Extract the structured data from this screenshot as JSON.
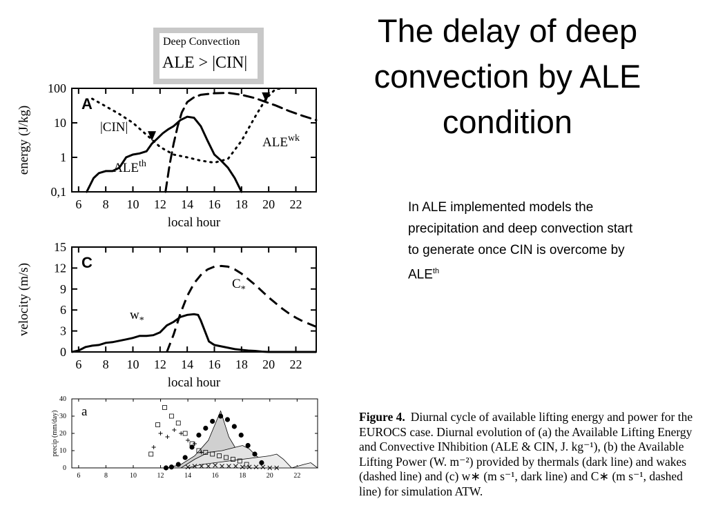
{
  "slide": {
    "title_lines": [
      "The delay of deep",
      "convection by ALE",
      "condition"
    ],
    "note_text": "In ALE implemented models the precipitation and deep convection start to generate once CIN is overcome by ALE",
    "note_sup": "th",
    "deep_convection_box": {
      "line1": "Deep Convection",
      "line2": "ALE > |CIN|"
    },
    "caption": {
      "label": "Figure 4.",
      "text": "Diurnal cycle of available lifting energy and power for the EUROCS case. Diurnal evolution of (a) the Available Lifting Energy and Convective INhibition (ALE & CIN, J. kg⁻¹), (b) the Available Lifting Power (W. m⁻²) provided by thermals (dark line) and wakes (dashed line) and (c) w∗ (m s⁻¹, dark line) and C∗ (m s⁻¹, dashed line) for simulation ATW."
    }
  },
  "chart_data": [
    {
      "type": "line",
      "panel": "A",
      "xlabel": "local hour",
      "ylabel": "energy (J/kg)",
      "xlim": [
        5.5,
        23.5
      ],
      "ylim": [
        0.1,
        100
      ],
      "yscale": "log",
      "x_ticks": [
        6,
        8,
        10,
        12,
        14,
        16,
        18,
        20,
        22
      ],
      "y_ticks": [
        0.1,
        1,
        10,
        100
      ],
      "y_tick_labels": [
        "0,1",
        "1",
        "10",
        "100"
      ],
      "series": [
        {
          "name": "ALE",
          "name_sup": "th",
          "style": "solid",
          "x": [
            6.6,
            7.1,
            7.5,
            8.0,
            8.5,
            9.0,
            9.5,
            10.0,
            10.5,
            11.0,
            11.4,
            11.8,
            12.2,
            12.6,
            13.0,
            13.5,
            14.0,
            14.5,
            15.0,
            15.5,
            16.0,
            16.5,
            17.0,
            17.5,
            18.0
          ],
          "y": [
            0.1,
            0.25,
            0.35,
            0.4,
            0.4,
            0.5,
            1.0,
            1.2,
            1.3,
            1.5,
            2.5,
            3.5,
            5.0,
            6.5,
            8.0,
            12.0,
            15.0,
            14.0,
            8.0,
            3.0,
            1.2,
            0.8,
            0.5,
            0.25,
            0.1
          ]
        },
        {
          "name": "|CIN|",
          "style": "dotted",
          "x": [
            7.0,
            8.0,
            9.0,
            10.0,
            11.0,
            11.5,
            12.0,
            13.0,
            14.0,
            15.0,
            16.0,
            17.0,
            18.0,
            19.0,
            19.8,
            20.5,
            21.0
          ],
          "y": [
            50.0,
            30.0,
            18.0,
            10.0,
            4.5,
            3.0,
            2.0,
            1.2,
            1.0,
            0.8,
            0.7,
            0.9,
            3.0,
            15.0,
            50.0,
            95.0,
            100.0
          ]
        },
        {
          "name": "ALE",
          "name_sup": "wk",
          "style": "dashed",
          "x": [
            12.4,
            12.7,
            13.0,
            13.3,
            13.6,
            14.0,
            14.5,
            15.0,
            16.0,
            17.0,
            18.0,
            19.0,
            19.8,
            20.5,
            21.5,
            22.5,
            23.5
          ],
          "y": [
            0.1,
            0.6,
            2.5,
            8.0,
            20.0,
            40.0,
            55.0,
            65.0,
            72.0,
            74.0,
            65.0,
            52.0,
            40.0,
            32.0,
            22.0,
            16.0,
            12.0
          ]
        }
      ],
      "markers": [
        {
          "x": 11.4,
          "y": 3.0
        },
        {
          "x": 19.8,
          "y": 40.0
        }
      ]
    },
    {
      "type": "line",
      "panel": "C",
      "xlabel": "local hour",
      "ylabel": "velocity (m/s)",
      "xlim": [
        5.5,
        23.5
      ],
      "ylim": [
        0,
        15
      ],
      "x_ticks": [
        6,
        8,
        10,
        12,
        14,
        16,
        18,
        20,
        22
      ],
      "y_ticks": [
        0,
        3,
        6,
        9,
        12,
        15
      ],
      "series": [
        {
          "name": "w",
          "name_sub": "*",
          "style": "solid",
          "x": [
            5.5,
            6.0,
            6.5,
            7.0,
            7.5,
            8.0,
            8.5,
            9.0,
            9.5,
            10.0,
            10.5,
            11.0,
            11.5,
            12.0,
            12.5,
            13.0,
            13.5,
            14.0,
            14.5,
            14.8,
            15.0,
            15.3,
            15.6,
            16.0,
            16.5,
            17.0,
            17.5,
            18.0,
            18.5,
            19.0,
            19.5,
            20.0,
            23.5
          ],
          "y": [
            0.0,
            0.2,
            0.7,
            0.9,
            1.0,
            1.3,
            1.4,
            1.6,
            1.8,
            2.0,
            2.3,
            2.3,
            2.4,
            2.8,
            3.8,
            4.3,
            5.0,
            5.3,
            5.4,
            5.3,
            4.5,
            3.0,
            1.5,
            1.0,
            0.8,
            0.6,
            0.4,
            0.3,
            0.2,
            0.15,
            0.05,
            0.0,
            0.0
          ]
        },
        {
          "name": "C",
          "name_sub": "*",
          "style": "dashed",
          "x": [
            12.5,
            13.0,
            13.5,
            14.0,
            14.5,
            15.0,
            15.5,
            16.0,
            16.5,
            17.0,
            17.5,
            18.0,
            18.5,
            19.0,
            19.5,
            20.0,
            20.5,
            21.0,
            21.5,
            22.0,
            22.5,
            23.0,
            23.5
          ],
          "y": [
            0.0,
            2.5,
            5.5,
            8.0,
            9.8,
            11.0,
            11.8,
            12.2,
            12.3,
            12.2,
            11.8,
            11.2,
            10.4,
            9.6,
            8.7,
            7.8,
            7.0,
            6.2,
            5.5,
            4.9,
            4.4,
            4.0,
            3.6
          ]
        }
      ]
    },
    {
      "type": "area",
      "panel": "a",
      "ylabel": "precip (mm/day)",
      "xlim": [
        5.5,
        23.5
      ],
      "ylim": [
        0,
        40
      ],
      "x_ticks": [
        6,
        8,
        10,
        12,
        14,
        16,
        18,
        20,
        22
      ],
      "y_ticks": [
        0,
        10,
        20,
        30,
        40
      ],
      "series": [
        {
          "style": "shaded-upper",
          "x": [
            12.5,
            13.5,
            14.5,
            15.5,
            16.4,
            17.0,
            17.6,
            18.2,
            18.8,
            19.4,
            20.0,
            20.5,
            21.0,
            22.0
          ],
          "y": [
            0,
            2,
            7,
            16,
            33,
            18,
            10,
            6,
            4,
            2,
            1,
            0,
            0,
            0
          ]
        },
        {
          "style": "shaded-middle",
          "x": [
            13.5,
            14.5,
            15.5,
            16.5,
            17.5,
            18.0,
            18.5,
            19.0,
            19.5,
            20.0,
            20.5,
            21.5
          ],
          "y": [
            0,
            5,
            9,
            10,
            12,
            13,
            11,
            7,
            4,
            3,
            2,
            0
          ]
        },
        {
          "style": "shaded-lower",
          "x": [
            14.0,
            15.0,
            16.0,
            17.0,
            18.0,
            19.0,
            20.0,
            20.5,
            21.0,
            21.6,
            22.5,
            23.0,
            23.5
          ],
          "y": [
            0,
            2,
            3,
            4,
            5,
            6,
            7,
            8,
            5,
            0,
            2,
            3,
            0
          ]
        },
        {
          "marker": "circle",
          "x": [
            12.4,
            12.8,
            13.3,
            13.8,
            14.3,
            14.8,
            15.3,
            15.8,
            16.4,
            16.9,
            17.4,
            17.9,
            18.4,
            18.9,
            19.4
          ],
          "y": [
            0,
            0.5,
            2,
            6,
            12,
            19,
            23,
            27,
            30,
            28,
            24,
            19,
            13,
            8,
            3
          ]
        },
        {
          "marker": "square",
          "x": [
            11.3,
            11.8,
            12.3,
            12.8,
            13.3,
            13.8,
            14.3,
            14.8,
            15.3,
            15.8,
            16.3,
            16.8,
            17.3,
            17.8,
            18.3
          ],
          "y": [
            8,
            25,
            35,
            30,
            26,
            20,
            14,
            10,
            9,
            8,
            7,
            6,
            5,
            4,
            2
          ]
        },
        {
          "marker": "plus",
          "x": [
            11.5,
            12.0,
            12.5,
            13.0,
            13.5,
            14.0,
            14.5,
            15.0
          ],
          "y": [
            12,
            20,
            18,
            22,
            20,
            16,
            14,
            9
          ]
        },
        {
          "marker": "cross",
          "x": [
            14.0,
            14.5,
            15.0,
            15.5,
            16.0,
            16.5,
            17.0,
            17.5,
            18.0,
            18.5,
            19.0,
            19.5,
            20.0,
            20.5
          ],
          "y": [
            0.5,
            1,
            1,
            1,
            1.5,
            1,
            1,
            1,
            0.5,
            0.5,
            0.5,
            0.5,
            0,
            0
          ]
        }
      ]
    }
  ]
}
